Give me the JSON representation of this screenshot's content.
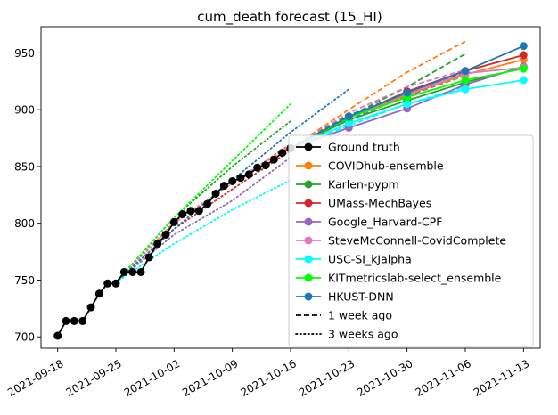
{
  "chart_data": {
    "type": "line",
    "title": "cum_death forecast (15_HI)",
    "xlabel": "",
    "ylabel": "",
    "xlim": [
      "2021-09-16",
      "2021-11-15"
    ],
    "ylim": [
      690,
      973
    ],
    "x_ticks": [
      "2021-09-18",
      "2021-09-25",
      "2021-10-02",
      "2021-10-09",
      "2021-10-16",
      "2021-10-23",
      "2021-10-30",
      "2021-11-06",
      "2021-11-13"
    ],
    "y_ticks": [
      700,
      750,
      800,
      850,
      900,
      950
    ],
    "grid": false,
    "legend_position": "lower right",
    "ground_truth": {
      "name": "Ground truth",
      "color": "#000000",
      "x": [
        "2021-09-18",
        "2021-09-19",
        "2021-09-20",
        "2021-09-21",
        "2021-09-22",
        "2021-09-23",
        "2021-09-24",
        "2021-09-25",
        "2021-09-26",
        "2021-09-27",
        "2021-09-28",
        "2021-09-29",
        "2021-09-30",
        "2021-10-01",
        "2021-10-02",
        "2021-10-03",
        "2021-10-04",
        "2021-10-05",
        "2021-10-06",
        "2021-10-07",
        "2021-10-08",
        "2021-10-09",
        "2021-10-10",
        "2021-10-11",
        "2021-10-12",
        "2021-10-13",
        "2021-10-14",
        "2021-10-15",
        "2021-10-16"
      ],
      "y": [
        701,
        714,
        714,
        714,
        726,
        738,
        747,
        747,
        757,
        757,
        757,
        770,
        782,
        790,
        801,
        808,
        811,
        811,
        817,
        826,
        833,
        837,
        840,
        843,
        849,
        851,
        856,
        862,
        866
      ]
    },
    "series": [
      {
        "name": "COVIDhub-ensemble",
        "color": "#ff7f0e",
        "x": [
          "2021-10-16",
          "2021-10-23",
          "2021-10-30",
          "2021-11-06",
          "2021-11-13"
        ],
        "y": [
          866,
          893,
          913,
          931,
          944
        ],
        "week1": {
          "x": [
            "2021-10-16",
            "2021-10-23",
            "2021-10-30",
            "2021-11-06"
          ],
          "y": [
            866,
            900,
            933,
            960
          ]
        },
        "week3": {
          "x": [
            "2021-09-25",
            "2021-10-02",
            "2021-10-09",
            "2021-10-16"
          ],
          "y": [
            748,
            801,
            835,
            868
          ]
        }
      },
      {
        "name": "Karlen-pypm",
        "color": "#2ca02c",
        "x": [
          "2021-10-16",
          "2021-10-23",
          "2021-10-30",
          "2021-11-06",
          "2021-11-13"
        ],
        "y": [
          866,
          891,
          908,
          924,
          937
        ],
        "week1": {
          "x": [
            "2021-10-16",
            "2021-10-23",
            "2021-10-30",
            "2021-11-06"
          ],
          "y": [
            866,
            894,
            920,
            949
          ]
        },
        "week3": {
          "x": [
            "2021-09-25",
            "2021-10-02",
            "2021-10-09",
            "2021-10-16"
          ],
          "y": [
            748,
            805,
            850,
            890
          ]
        }
      },
      {
        "name": "UMass-MechBayes",
        "color": "#d62728",
        "x": [
          "2021-10-16",
          "2021-10-23",
          "2021-10-30",
          "2021-11-06",
          "2021-11-13"
        ],
        "y": [
          866,
          893,
          916,
          934,
          948
        ],
        "week1": {
          "x": [
            "2021-10-16",
            "2021-10-23",
            "2021-10-30",
            "2021-11-06"
          ],
          "y": [
            866,
            893,
            916,
            933
          ]
        },
        "week3": {
          "x": [
            "2021-09-25",
            "2021-10-02",
            "2021-10-09",
            "2021-10-16"
          ],
          "y": [
            748,
            795,
            830,
            864
          ]
        }
      },
      {
        "name": "Google_Harvard-CPF",
        "color": "#9467bd",
        "x": [
          "2021-10-16",
          "2021-10-23",
          "2021-10-30",
          "2021-11-06",
          "2021-11-13"
        ],
        "y": [
          866,
          884,
          901,
          922,
          938
        ],
        "week1": {
          "x": [
            "2021-10-16",
            "2021-10-23",
            "2021-10-30",
            "2021-11-06"
          ],
          "y": [
            866,
            891,
            912,
            930
          ]
        },
        "week3": {
          "x": [
            "2021-09-25",
            "2021-10-02",
            "2021-10-09",
            "2021-10-16"
          ],
          "y": [
            748,
            790,
            820,
            858
          ]
        }
      },
      {
        "name": "SteveMcConnell-CovidComplete",
        "color": "#e377c2",
        "x": [
          "2021-10-16",
          "2021-10-23",
          "2021-10-30",
          "2021-11-06",
          "2021-11-13"
        ],
        "y": [
          866,
          894,
          914,
          932,
          937
        ],
        "week1": {
          "x": [
            "2021-10-16",
            "2021-10-23",
            "2021-10-30",
            "2021-11-06"
          ],
          "y": [
            866,
            897,
            920,
            935
          ]
        },
        "week3": {
          "x": [
            "2021-09-25",
            "2021-10-02",
            "2021-10-09",
            "2021-10-16"
          ],
          "y": [
            748,
            800,
            835,
            870
          ]
        }
      },
      {
        "name": "USC-SI_kJalpha",
        "color": "#00ffff",
        "x": [
          "2021-10-16",
          "2021-10-23",
          "2021-10-30",
          "2021-11-06",
          "2021-11-13"
        ],
        "y": [
          866,
          888,
          905,
          918,
          926
        ],
        "week1": {
          "x": [
            "2021-10-16",
            "2021-10-23",
            "2021-10-30",
            "2021-11-06"
          ],
          "y": [
            866,
            886,
            905,
            920
          ]
        },
        "week3": {
          "x": [
            "2021-09-25",
            "2021-10-02",
            "2021-10-09",
            "2021-10-16"
          ],
          "y": [
            748,
            782,
            812,
            838
          ]
        }
      },
      {
        "name": "KITmetricslab-select_ensemble",
        "color": "#00ff00",
        "x": [
          "2021-10-16",
          "2021-10-23",
          "2021-10-30",
          "2021-11-06",
          "2021-11-13"
        ],
        "y": [
          866,
          893,
          911,
          926,
          936
        ],
        "week1": {
          "x": [
            "2021-10-16",
            "2021-10-23",
            "2021-10-30",
            "2021-11-06"
          ],
          "y": [
            866,
            895,
            914,
            930
          ]
        },
        "week3": {
          "x": [
            "2021-09-25",
            "2021-10-02",
            "2021-10-09",
            "2021-10-16"
          ],
          "y": [
            748,
            805,
            855,
            905
          ]
        }
      },
      {
        "name": "HKUST-DNN",
        "color": "#1f77b4",
        "x": [
          "2021-10-16",
          "2021-10-23",
          "2021-10-30",
          "2021-11-06",
          "2021-11-13"
        ],
        "y": [
          866,
          894,
          915,
          934,
          956
        ],
        "week1": {
          "x": [
            "2021-10-16",
            "2021-10-23",
            "2021-10-30",
            "2021-11-06"
          ],
          "y": [
            866,
            895,
            915,
            934
          ]
        },
        "week3": {
          "x": [
            "2021-09-25",
            "2021-10-02",
            "2021-10-09",
            "2021-10-16",
            "2021-10-23"
          ],
          "y": [
            748,
            795,
            838,
            880,
            918
          ]
        }
      }
    ],
    "legend": [
      {
        "label": "Ground truth",
        "kind": "marker-line",
        "color": "#000000"
      },
      {
        "label": "COVIDhub-ensemble",
        "kind": "marker-line",
        "color": "#ff7f0e"
      },
      {
        "label": "Karlen-pypm",
        "kind": "marker-line",
        "color": "#2ca02c"
      },
      {
        "label": "UMass-MechBayes",
        "kind": "marker-line",
        "color": "#d62728"
      },
      {
        "label": "Google_Harvard-CPF",
        "kind": "marker-line",
        "color": "#9467bd"
      },
      {
        "label": "SteveMcConnell-CovidComplete",
        "kind": "marker-line",
        "color": "#e377c2"
      },
      {
        "label": "USC-SI_kJalpha",
        "kind": "marker-line",
        "color": "#00ffff"
      },
      {
        "label": "KITmetricslab-select_ensemble",
        "kind": "marker-line",
        "color": "#00ff00"
      },
      {
        "label": "HKUST-DNN",
        "kind": "marker-line",
        "color": "#1f77b4"
      },
      {
        "label": "1 week ago",
        "kind": "dashed",
        "color": "#000000"
      },
      {
        "label": "3 weeks ago",
        "kind": "dotted",
        "color": "#000000"
      }
    ]
  }
}
